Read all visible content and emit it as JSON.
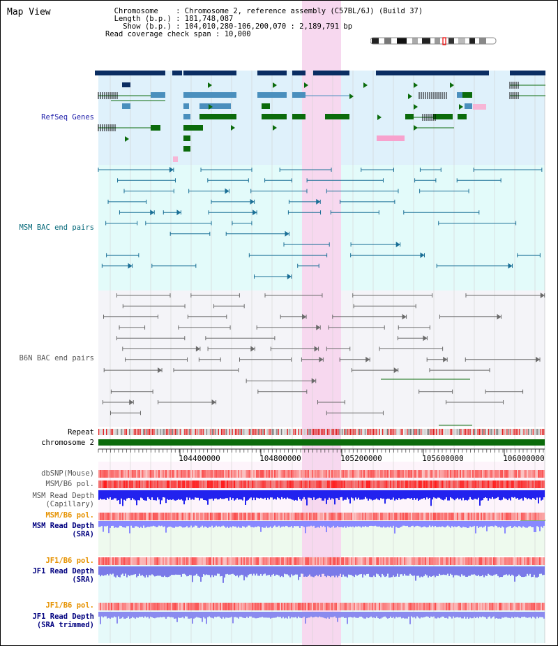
{
  "app": {
    "title": "Map View"
  },
  "info": {
    "chromosome_label": "Chromosome",
    "chromosome_value": "Chromosome 2, reference assembly (C57BL/6J) (Build 37)",
    "length_label": "Length (b.p.)",
    "length_value": "181,748,087",
    "show_label": "Show (b.p.)",
    "show_value": "104,010,280-106,200,070 : 2,189,791 bp",
    "span_label": "Read coverage check span",
    "span_value": "10,000"
  },
  "tracks": {
    "refseq": "RefSeq Genes",
    "msm_bac": "MSM BAC end pairs",
    "b6n_bac": "B6N BAC end pairs",
    "repeat": "Repeat",
    "chromosome": "chromosome 2",
    "dbsnp": "dbSNP(Mouse)",
    "msm_b6_pol_1": "MSM/B6 pol.",
    "msm_read_depth_cap_1": "MSM Read Depth",
    "msm_read_depth_cap_2": "(Capillary)",
    "msm_b6_pol_2": "MSM/B6 pol.",
    "msm_read_depth_sra_1": "MSM Read Depth",
    "msm_read_depth_sra_2": "(SRA)",
    "jf1_b6_pol_1": "JF1/B6 pol.",
    "jf1_read_depth_sra_1": "JF1 Read Depth",
    "jf1_read_depth_sra_2": "(SRA)",
    "jf1_b6_pol_2": "JF1/B6 pol.",
    "jf1_read_depth_trim_1": "JF1 Read Depth",
    "jf1_read_depth_trim_2": "(SRA trimmed)"
  },
  "ruler": {
    "ticks": [
      "104400000",
      "104800000",
      "105200000",
      "105600000",
      "106000000"
    ]
  },
  "colors": {
    "refseq_bg": "#dff1fb",
    "msm_bg": "#e3fbfa",
    "b6n_bg": "#f4f4f8",
    "highlight": "#f7d8ef",
    "chrom_bar": "#0b6b0b",
    "label_blue": "#00007f",
    "label_teal": "#006677",
    "label_orange": "#e69200"
  }
}
